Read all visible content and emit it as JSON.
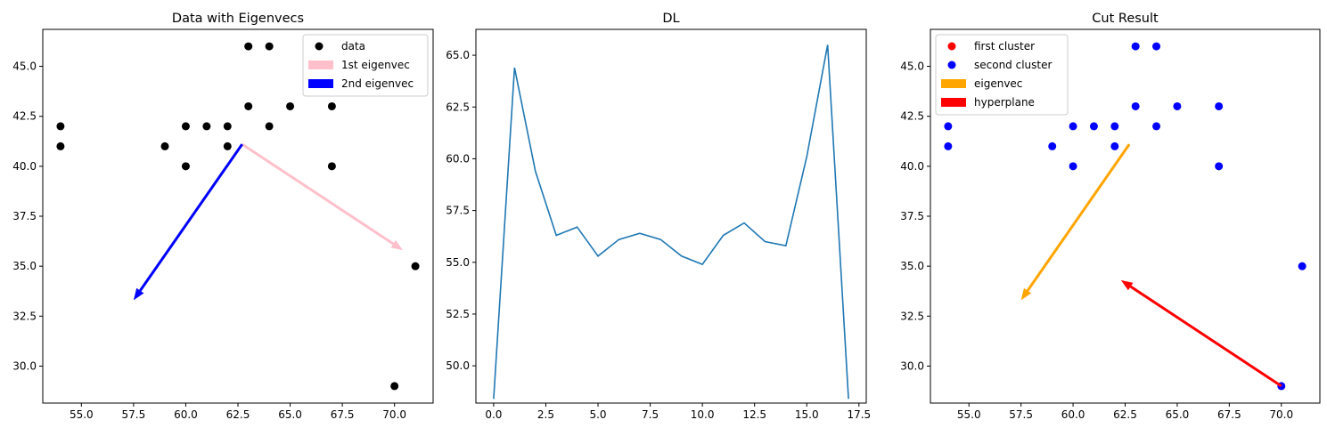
{
  "chart_data": [
    {
      "type": "scatter",
      "title": "Data with Eigenvecs",
      "xlim": [
        53.15,
        71.85
      ],
      "ylim": [
        28.15,
        46.85
      ],
      "xticks": [
        55.0,
        57.5,
        60.0,
        62.5,
        65.0,
        67.5,
        70.0
      ],
      "yticks": [
        30.0,
        32.5,
        35.0,
        37.5,
        40.0,
        42.5,
        45.0
      ],
      "xtick_labels": [
        "55.0",
        "57.5",
        "60.0",
        "62.5",
        "65.0",
        "67.5",
        "70.0"
      ],
      "ytick_labels": [
        "30.0",
        "32.5",
        "35.0",
        "37.5",
        "40.0",
        "42.5",
        "45.0"
      ],
      "legend_position": "upper right",
      "series": [
        {
          "name": "data",
          "kind": "points",
          "color": "#000000",
          "points": [
            [
              54,
              42
            ],
            [
              54,
              41
            ],
            [
              59,
              41
            ],
            [
              60,
              42
            ],
            [
              60,
              40
            ],
            [
              61,
              42
            ],
            [
              62,
              42
            ],
            [
              62,
              41
            ],
            [
              63,
              46
            ],
            [
              63,
              43
            ],
            [
              64,
              46
            ],
            [
              64,
              42
            ],
            [
              65,
              43
            ],
            [
              67,
              43
            ],
            [
              67,
              40
            ],
            [
              71,
              35
            ],
            [
              70,
              29
            ]
          ]
        },
        {
          "name": "1st eigenvec",
          "kind": "arrow",
          "color": "#ffc0cb",
          "from": [
            62.7,
            41.1
          ],
          "to": [
            70.4,
            35.8
          ]
        },
        {
          "name": "2nd eigenvec",
          "kind": "arrow",
          "color": "#0000ff",
          "from": [
            62.7,
            41.1
          ],
          "to": [
            57.5,
            33.3
          ]
        }
      ]
    },
    {
      "type": "line",
      "title": "DL",
      "xlim": [
        -0.85,
        17.85
      ],
      "ylim": [
        48.2,
        66.25
      ],
      "xticks": [
        0.0,
        2.5,
        5.0,
        7.5,
        10.0,
        12.5,
        15.0,
        17.5
      ],
      "yticks": [
        50.0,
        52.5,
        55.0,
        57.5,
        60.0,
        62.5,
        65.0
      ],
      "xtick_labels": [
        "0.0",
        "2.5",
        "5.0",
        "7.5",
        "10.0",
        "12.5",
        "15.0",
        "17.5"
      ],
      "ytick_labels": [
        "50.0",
        "52.5",
        "55.0",
        "57.5",
        "60.0",
        "62.5",
        "65.0"
      ],
      "series": [
        {
          "color": "#1f77b4",
          "x": [
            0,
            1,
            2,
            3,
            4,
            5,
            6,
            7,
            8,
            9,
            10,
            11,
            12,
            13,
            14,
            15,
            16,
            17
          ],
          "y": [
            48.4,
            64.4,
            59.4,
            56.3,
            56.7,
            55.3,
            56.1,
            56.4,
            56.1,
            55.3,
            54.9,
            56.3,
            56.9,
            56.0,
            55.8,
            60.1,
            65.5,
            48.4
          ]
        }
      ]
    },
    {
      "type": "scatter",
      "title": "Cut Result",
      "xlim": [
        53.15,
        71.85
      ],
      "ylim": [
        28.15,
        46.85
      ],
      "xticks": [
        55.0,
        57.5,
        60.0,
        62.5,
        65.0,
        67.5,
        70.0
      ],
      "yticks": [
        30.0,
        32.5,
        35.0,
        37.5,
        40.0,
        42.5,
        45.0
      ],
      "xtick_labels": [
        "55.0",
        "57.5",
        "60.0",
        "62.5",
        "65.0",
        "67.5",
        "70.0"
      ],
      "ytick_labels": [
        "30.0",
        "32.5",
        "35.0",
        "37.5",
        "40.0",
        "42.5",
        "45.0"
      ],
      "legend_position": "upper left",
      "series": [
        {
          "name": "first cluster",
          "kind": "points",
          "color": "#ff0000",
          "points": []
        },
        {
          "name": "second cluster",
          "kind": "points",
          "color": "#0000ff",
          "points": [
            [
              54,
              42
            ],
            [
              54,
              41
            ],
            [
              59,
              41
            ],
            [
              60,
              42
            ],
            [
              60,
              40
            ],
            [
              61,
              42
            ],
            [
              62,
              42
            ],
            [
              62,
              41
            ],
            [
              63,
              46
            ],
            [
              63,
              43
            ],
            [
              64,
              46
            ],
            [
              64,
              42
            ],
            [
              65,
              43
            ],
            [
              67,
              43
            ],
            [
              67,
              40
            ],
            [
              71,
              35
            ],
            [
              70,
              29
            ]
          ]
        },
        {
          "name": "eigenvec",
          "kind": "arrow",
          "color": "#ffa500",
          "from": [
            62.7,
            41.1
          ],
          "to": [
            57.5,
            33.3
          ]
        },
        {
          "name": "hyperplane",
          "kind": "arrow",
          "color": "#ff0000",
          "from": [
            70.0,
            29.0
          ],
          "to": [
            62.3,
            34.3
          ]
        }
      ]
    }
  ]
}
